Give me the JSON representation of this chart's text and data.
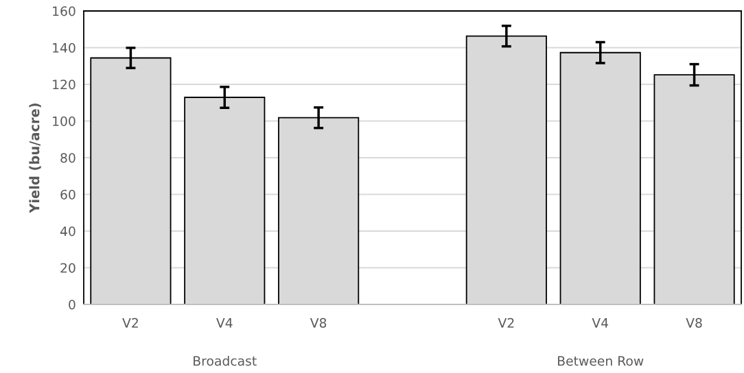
{
  "chart_data": {
    "type": "bar",
    "ylabel": "Yield (bu/acre)",
    "categories": [
      "V2",
      "V4",
      "V8",
      null,
      "V2",
      "V4",
      "V8"
    ],
    "values": [
      134.4,
      112.9,
      101.8,
      null,
      146.3,
      137.3,
      125.2
    ],
    "errors": [
      5.5,
      5.7,
      5.6,
      null,
      5.6,
      5.7,
      5.8
    ],
    "color": "#d9d9d9",
    "ylim": [
      0,
      160
    ],
    "yticks": [
      0,
      20,
      40,
      60,
      80,
      100,
      120,
      140,
      160
    ],
    "grid": "y",
    "annotations": [
      "Broadcast",
      "Between Row"
    ]
  }
}
